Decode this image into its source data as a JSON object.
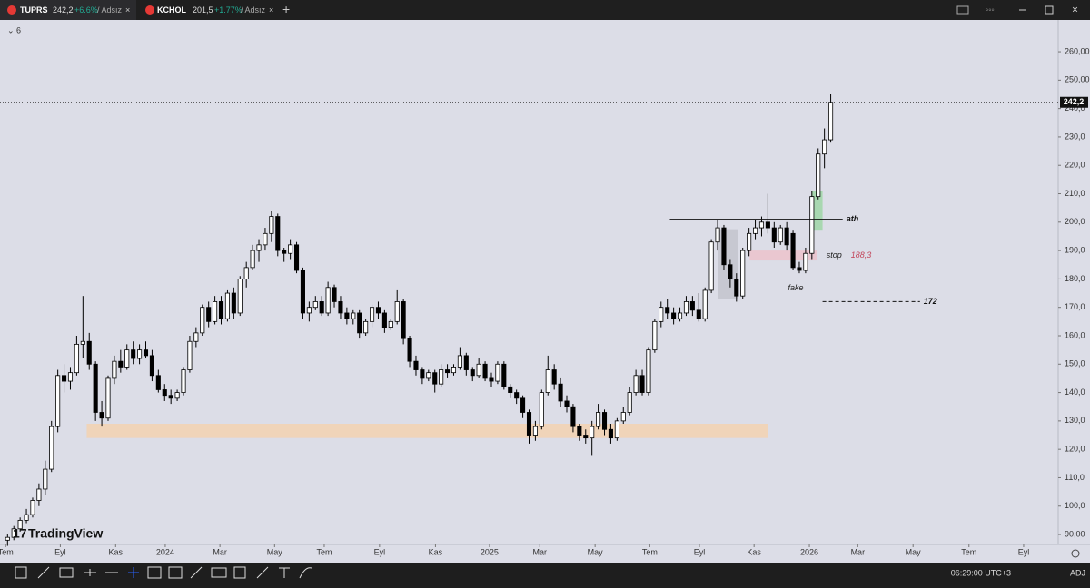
{
  "tabs": [
    {
      "symbol": "TUPRS",
      "price": "242,2",
      "change": "+6.6%",
      "layout": "/ Adsız"
    },
    {
      "symbol": "KCHOL",
      "price": "201,5",
      "change": "+1.77%",
      "layout": "/ Adsız"
    }
  ],
  "interval": "6",
  "brand": "TradingView",
  "status": {
    "time": "06:29:00 UTC+3",
    "mode": "ADJ"
  },
  "chart_data": {
    "type": "candlestick",
    "candles": [
      [
        88,
        90,
        86,
        89
      ],
      [
        89,
        93,
        88,
        92
      ],
      [
        92,
        96,
        91,
        95
      ],
      [
        95,
        99,
        94,
        97
      ],
      [
        97,
        103,
        96,
        102
      ],
      [
        102,
        108,
        100,
        106
      ],
      [
        106,
        116,
        104,
        113
      ],
      [
        113,
        130,
        112,
        128
      ],
      [
        128,
        148,
        126,
        146
      ],
      [
        146,
        150,
        140,
        144
      ],
      [
        144,
        149,
        141,
        147
      ],
      [
        147,
        160,
        146,
        157
      ],
      [
        157,
        174,
        152,
        158
      ],
      [
        158,
        161,
        148,
        150
      ],
      [
        150,
        151,
        130,
        133
      ],
      [
        133,
        137,
        128,
        131
      ],
      [
        131,
        146,
        130,
        145
      ],
      [
        145,
        153,
        143,
        151
      ],
      [
        151,
        155,
        147,
        149
      ],
      [
        149,
        157,
        148,
        155
      ],
      [
        155,
        158,
        150,
        152
      ],
      [
        152,
        157,
        150,
        155
      ],
      [
        155,
        158,
        152,
        153
      ],
      [
        153,
        155,
        144,
        146
      ],
      [
        146,
        148,
        140,
        141
      ],
      [
        141,
        143,
        137,
        139
      ],
      [
        139,
        141,
        136,
        138
      ],
      [
        138,
        141,
        137,
        140
      ],
      [
        140,
        149,
        139,
        148
      ],
      [
        148,
        160,
        147,
        158
      ],
      [
        158,
        163,
        156,
        161
      ],
      [
        161,
        171,
        160,
        170
      ],
      [
        170,
        172,
        163,
        165
      ],
      [
        165,
        174,
        164,
        172
      ],
      [
        172,
        174,
        164,
        166
      ],
      [
        166,
        176,
        165,
        175
      ],
      [
        175,
        177,
        166,
        168
      ],
      [
        168,
        181,
        167,
        180
      ],
      [
        180,
        186,
        177,
        184
      ],
      [
        184,
        192,
        183,
        190
      ],
      [
        190,
        194,
        186,
        192
      ],
      [
        192,
        198,
        190,
        196
      ],
      [
        196,
        204,
        193,
        202
      ],
      [
        202,
        203,
        188,
        190
      ],
      [
        190,
        191,
        186,
        189
      ],
      [
        189,
        194,
        187,
        192
      ],
      [
        192,
        193,
        182,
        183
      ],
      [
        183,
        184,
        166,
        168
      ],
      [
        168,
        172,
        165,
        170
      ],
      [
        170,
        174,
        169,
        172
      ],
      [
        172,
        174,
        167,
        168
      ],
      [
        168,
        179,
        167,
        177
      ],
      [
        177,
        178,
        170,
        172
      ],
      [
        172,
        174,
        166,
        168
      ],
      [
        168,
        170,
        164,
        166
      ],
      [
        166,
        169,
        164,
        168
      ],
      [
        168,
        169,
        159,
        161
      ],
      [
        161,
        166,
        160,
        165
      ],
      [
        165,
        171,
        163,
        170
      ],
      [
        170,
        172,
        166,
        168
      ],
      [
        168,
        169,
        161,
        163
      ],
      [
        163,
        166,
        162,
        165
      ],
      [
        165,
        176,
        164,
        172
      ],
      [
        172,
        173,
        157,
        159
      ],
      [
        159,
        160,
        149,
        151
      ],
      [
        151,
        153,
        146,
        148
      ],
      [
        148,
        149,
        143,
        145
      ],
      [
        145,
        148,
        144,
        147
      ],
      [
        147,
        148,
        140,
        143
      ],
      [
        143,
        150,
        142,
        148
      ],
      [
        148,
        150,
        145,
        147
      ],
      [
        147,
        150,
        146,
        149
      ],
      [
        149,
        156,
        148,
        153
      ],
      [
        153,
        154,
        146,
        148
      ],
      [
        148,
        149,
        144,
        146
      ],
      [
        146,
        152,
        145,
        150
      ],
      [
        150,
        151,
        144,
        145
      ],
      [
        145,
        147,
        142,
        144
      ],
      [
        144,
        151,
        143,
        150
      ],
      [
        150,
        151,
        141,
        142
      ],
      [
        142,
        143,
        138,
        140
      ],
      [
        140,
        141,
        136,
        138
      ],
      [
        138,
        139,
        131,
        133
      ],
      [
        133,
        134,
        122,
        125
      ],
      [
        125,
        130,
        123,
        128
      ],
      [
        128,
        141,
        127,
        140
      ],
      [
        140,
        153,
        139,
        148
      ],
      [
        148,
        150,
        141,
        143
      ],
      [
        143,
        145,
        135,
        137
      ],
      [
        137,
        139,
        133,
        135
      ],
      [
        135,
        136,
        126,
        128
      ],
      [
        128,
        129,
        123,
        125
      ],
      [
        125,
        127,
        122,
        124
      ],
      [
        124,
        130,
        118,
        128
      ],
      [
        128,
        136,
        127,
        133
      ],
      [
        133,
        134,
        125,
        127
      ],
      [
        127,
        129,
        122,
        124
      ],
      [
        124,
        131,
        123,
        130
      ],
      [
        130,
        135,
        129,
        133
      ],
      [
        133,
        142,
        132,
        140
      ],
      [
        140,
        148,
        139,
        146
      ],
      [
        146,
        148,
        139,
        140
      ],
      [
        140,
        156,
        139,
        155
      ],
      [
        155,
        166,
        154,
        165
      ],
      [
        165,
        172,
        163,
        170
      ],
      [
        170,
        173,
        166,
        168
      ],
      [
        168,
        170,
        164,
        166
      ],
      [
        166,
        170,
        165,
        168
      ],
      [
        168,
        174,
        167,
        172
      ],
      [
        172,
        174,
        167,
        169
      ],
      [
        169,
        175,
        165,
        166
      ],
      [
        166,
        177,
        165,
        176
      ],
      [
        176,
        194,
        175,
        193
      ],
      [
        193,
        201,
        190,
        198
      ],
      [
        198,
        199,
        183,
        185
      ],
      [
        185,
        187,
        177,
        180
      ],
      [
        180,
        182,
        172,
        174
      ],
      [
        174,
        191,
        173,
        190
      ],
      [
        190,
        198,
        188,
        196
      ],
      [
        196,
        201,
        194,
        198
      ],
      [
        198,
        202,
        195,
        200
      ],
      [
        200,
        210,
        196,
        198
      ],
      [
        198,
        200,
        191,
        193
      ],
      [
        193,
        199,
        192,
        198
      ],
      [
        198,
        200,
        190,
        192
      ],
      [
        196,
        197,
        183,
        184
      ],
      [
        184,
        186,
        182,
        183
      ],
      [
        183,
        191,
        182,
        189
      ],
      [
        189,
        211,
        187,
        209
      ],
      [
        209,
        226,
        208,
        224
      ],
      [
        224,
        233,
        219,
        229
      ],
      [
        229,
        245,
        228,
        242.2
      ]
    ],
    "xlim": [
      -1.2,
      167.2
    ],
    "xticks": [
      {
        "value": -0.3,
        "label": "Tem"
      },
      {
        "value": 8.4,
        "label": "Eyl"
      },
      {
        "value": 17.2,
        "label": "Kas"
      },
      {
        "value": 25.1,
        "label": "2024"
      },
      {
        "value": 33.8,
        "label": "Mar"
      },
      {
        "value": 42.5,
        "label": "May"
      },
      {
        "value": 50.4,
        "label": "Tem"
      },
      {
        "value": 59.2,
        "label": "Eyl"
      },
      {
        "value": 68.1,
        "label": "Kas"
      },
      {
        "value": 76.7,
        "label": "2025"
      },
      {
        "value": 84.7,
        "label": "Mar"
      },
      {
        "value": 93.5,
        "label": "May"
      },
      {
        "value": 102.2,
        "label": "Tem"
      },
      {
        "value": 110.1,
        "label": "Eyl"
      },
      {
        "value": 118.8,
        "label": "Kas"
      },
      {
        "value": 127.6,
        "label": "2026"
      },
      {
        "value": 135.3,
        "label": "Mar"
      },
      {
        "value": 144.1,
        "label": "May"
      },
      {
        "value": 153,
        "label": "Tem"
      },
      {
        "value": 161.7,
        "label": "Eyl"
      }
    ],
    "ylim": [
      86.5,
      271.2
    ],
    "yticks": [
      {
        "value": 260,
        "label": "260,00"
      },
      {
        "value": 250,
        "label": "250,00"
      },
      {
        "value": 240,
        "label": "240,0"
      },
      {
        "value": 230,
        "label": "230,0"
      },
      {
        "value": 220,
        "label": "220,0"
      },
      {
        "value": 210,
        "label": "210,0"
      },
      {
        "value": 200,
        "label": "200,0"
      },
      {
        "value": 190,
        "label": "190,0"
      },
      {
        "value": 180,
        "label": "180,0"
      },
      {
        "value": 170,
        "label": "170,0"
      },
      {
        "value": 160,
        "label": "160,0"
      },
      {
        "value": 150,
        "label": "150,0"
      },
      {
        "value": 140,
        "label": "140,0"
      },
      {
        "value": 130,
        "label": "130,0"
      },
      {
        "value": 120,
        "label": "120,0"
      },
      {
        "value": 110,
        "label": "110,0"
      },
      {
        "value": 100,
        "label": "100,0"
      },
      {
        "value": 90,
        "label": "90,00"
      }
    ],
    "last_price": {
      "value": 242.2,
      "label": "242,2"
    },
    "zones": [
      {
        "x": [
          12.6,
          121
        ],
        "y": [
          124,
          129
        ],
        "color": "#f3d2b0"
      },
      {
        "x": [
          113,
          116.2
        ],
        "y": [
          173,
          197.5
        ],
        "color": "#c3c4cc"
      },
      {
        "x": [
          118.1,
          128.8
        ],
        "y": [
          186.5,
          190
        ],
        "color": "#ecc3cb"
      },
      {
        "x": [
          128,
          129.7
        ],
        "y": [
          197,
          211
        ],
        "color": "#9fd6a6"
      }
    ],
    "levels": [
      {
        "label": "ath",
        "value": 201,
        "x": [
          105.4,
          132.9
        ],
        "dashed": false
      },
      {
        "value": 172,
        "x": [
          129.7,
          145.2
        ],
        "dashed": true
      }
    ],
    "stop": {
      "label": "stop",
      "value": 188.3,
      "value_label": "188,3",
      "x": 130.3
    },
    "fake": {
      "label": "fake",
      "x": 124.2,
      "y": 180.5
    }
  }
}
